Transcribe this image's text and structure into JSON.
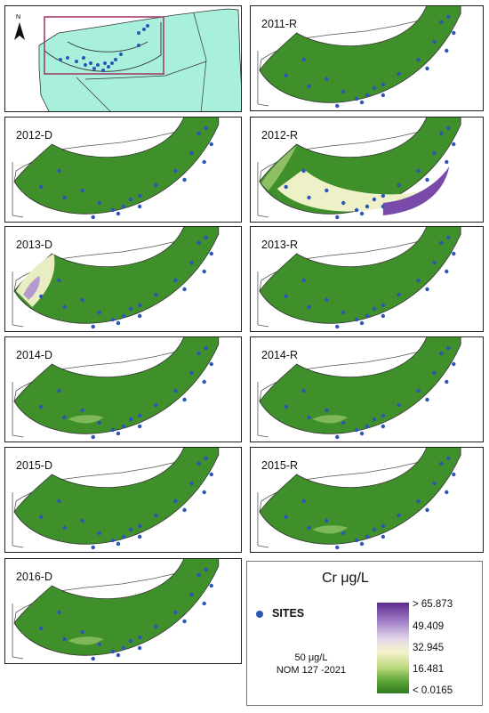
{
  "locator": {
    "north_label": "N"
  },
  "panels": [
    {
      "label": "2011-R",
      "variant": "green"
    },
    {
      "label": "2012-D",
      "variant": "green"
    },
    {
      "label": "2012-R",
      "variant": "high"
    },
    {
      "label": "2013-D",
      "variant": "west"
    },
    {
      "label": "2013-R",
      "variant": "green"
    },
    {
      "label": "2014-D",
      "variant": "light"
    },
    {
      "label": "2014-R",
      "variant": "light"
    },
    {
      "label": "2015-D",
      "variant": "green"
    },
    {
      "label": "2015-R",
      "variant": "light"
    },
    {
      "label": "2016-D",
      "variant": "light"
    }
  ],
  "legend": {
    "title": "Cr μg/L",
    "sites_label": "SITES",
    "limit_line1": "50 μg/L",
    "limit_line2": "NOM 127 -2021",
    "ticks": [
      "> 65.873",
      "49.409",
      "32.945",
      "16.481",
      "< 0.0165"
    ],
    "ramp_colors": [
      "#5a2a8e",
      "#a07cc6",
      "#e3d8e9",
      "#f4f2c8",
      "#b9d77a",
      "#5fa83a",
      "#2e7a1e"
    ]
  },
  "colors": {
    "arc_green": "#3f8f2a",
    "arc_green_dark": "#2f7a1f",
    "site_dot": "#2a56b8",
    "land_fill": "#a8f0dc"
  }
}
